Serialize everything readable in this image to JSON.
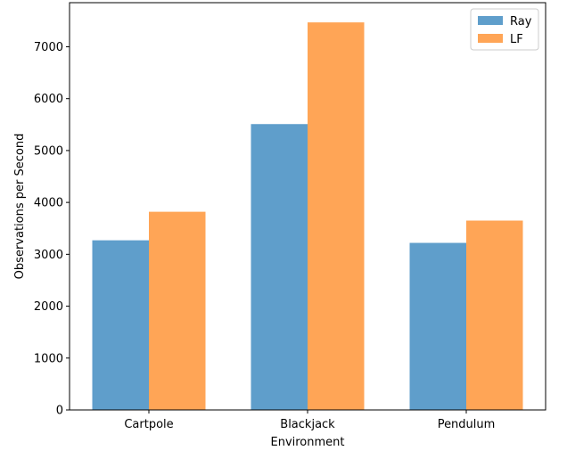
{
  "chart_data": {
    "type": "bar",
    "categories": [
      "Cartpole",
      "Blackjack",
      "Pendulum"
    ],
    "series": [
      {
        "name": "Ray",
        "values": [
          3270,
          5510,
          3220
        ],
        "color": "#5f9ecb"
      },
      {
        "name": "LF",
        "values": [
          3820,
          7470,
          3650
        ],
        "color": "#ffa556"
      }
    ],
    "xlabel": "Environment",
    "ylabel": "Observations per Second",
    "ylim": [
      0,
      7850
    ],
    "yticks": [
      0,
      1000,
      2000,
      3000,
      4000,
      5000,
      6000,
      7000
    ],
    "legend": "top-right",
    "grid": false
  }
}
